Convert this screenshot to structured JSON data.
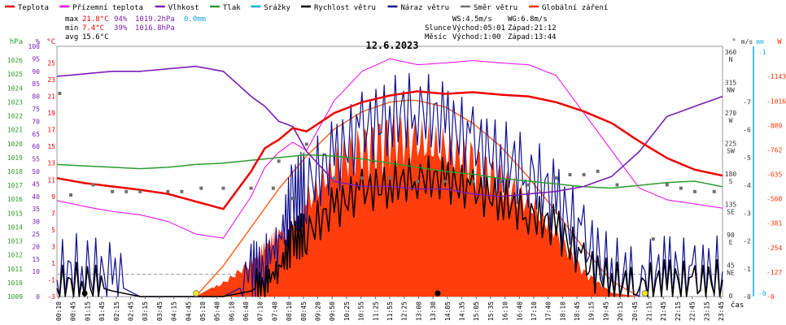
{
  "colors": {
    "temperature": "#ee0000",
    "feels_like": "#ee00ee",
    "humidity": "#7a1fb4",
    "pressure": "#2e9a2e",
    "precipitation": "#11aadd",
    "wind_speed": "#000000",
    "wind_gust": "#101090",
    "wind_direction": "#707070",
    "solar": "#ff3300",
    "solar_curve": "#ff6622",
    "ruler": "#cccccc",
    "axis_hpa": "#2e9a2e",
    "axis_pct": "#7a1fb4",
    "axis_c": "#ee0000",
    "axis_dir": "#333333",
    "axis_ms": "#333333",
    "axis_mm": "#11aadd",
    "axis_w": "#ff3300"
  },
  "legend": [
    {
      "key": "temperature",
      "label": "Teplota"
    },
    {
      "key": "feels_like",
      "label": "Přízemní teplota"
    },
    {
      "key": "humidity",
      "label": "Vlhkost"
    },
    {
      "key": "pressure",
      "label": "Tlak"
    },
    {
      "key": "precipitation",
      "label": "Srážky"
    },
    {
      "key": "wind_speed",
      "label": "Rychlost větru"
    },
    {
      "key": "wind_gust",
      "label": "Náraz větru"
    },
    {
      "key": "wind_direction",
      "label": "Směr větru"
    },
    {
      "key": "solar",
      "label": "Globální záření"
    }
  ],
  "stats": {
    "max": {
      "label": "max",
      "temp": "21.8°C",
      "hum": "94%",
      "press": "1019.2hPa",
      "rain": "0.0mm"
    },
    "min": {
      "label": "min",
      "temp": " 7.4°C",
      "hum": "39%",
      "press": "1016.8hPa"
    },
    "avg": {
      "label": "avg",
      "temp": "15.6°C"
    }
  },
  "wind_info": {
    "ws": "WS:4.5m/s",
    "wg": "WG:6.8m/s"
  },
  "sun": {
    "label": "Slunce",
    "rise": "Východ:05:01",
    "set": "Západ:21:12"
  },
  "moon": {
    "label": "Měsíc",
    "rise": "Východ:1:00",
    "set": "Západ:13:44"
  },
  "chart_data": {
    "type": "line",
    "title": "12.6.2023",
    "xlabel": "čas",
    "x_ticks": [
      "00:10",
      "00:45",
      "01:15",
      "01:45",
      "02:15",
      "02:45",
      "03:15",
      "03:45",
      "04:15",
      "04:45",
      "05:10",
      "05:40",
      "06:10",
      "06:40",
      "07:10",
      "07:40",
      "08:10",
      "08:45",
      "09:20",
      "09:50",
      "10:25",
      "10:55",
      "11:25",
      "11:55",
      "12:25",
      "13:00",
      "13:30",
      "14:05",
      "14:35",
      "15:05",
      "15:35",
      "16:10",
      "16:40",
      "17:10",
      "17:40",
      "18:10",
      "18:45",
      "19:15",
      "19:45",
      "20:15",
      "20:45",
      "21:15",
      "21:45",
      "22:15",
      "22:45",
      "23:15",
      "23:45"
    ],
    "axes": {
      "hpa": {
        "unit": "hPa",
        "range": [
          1009,
          1027
        ],
        "ticks": [
          1009,
          1010,
          1011,
          1012,
          1013,
          1014,
          1015,
          1016,
          1017,
          1018,
          1019,
          1020,
          1021,
          1022,
          1023,
          1024,
          1025,
          1026
        ]
      },
      "pct": {
        "unit": "%",
        "range": [
          0,
          100
        ],
        "ticks": [
          0,
          10,
          15,
          20,
          25,
          30,
          35,
          40,
          45,
          50,
          55,
          60,
          65,
          70,
          75,
          80,
          85,
          90,
          95,
          100
        ]
      },
      "c": {
        "unit": "°C",
        "range": [
          -3,
          27
        ],
        "ticks": [
          -3,
          -1,
          1,
          3,
          5,
          7,
          9,
          11,
          13,
          15,
          17,
          19,
          21,
          23,
          25
        ]
      },
      "dir": {
        "unit": "°",
        "ticks": [
          "0",
          "45",
          "90",
          "135",
          "180",
          "225",
          "270",
          "315",
          "360"
        ],
        "labels": [
          "",
          "NE",
          "E",
          "SE",
          "S",
          "SW",
          "W",
          "NW",
          "N"
        ]
      },
      "ms": {
        "unit": "m/s",
        "range": [
          0,
          9
        ],
        "ticks": [
          0,
          1,
          2,
          3,
          4,
          5,
          6,
          7
        ]
      },
      "mm": {
        "unit": "mm",
        "range": [
          0,
          1
        ],
        "ticks": [
          0,
          1
        ]
      },
      "w": {
        "unit": "W",
        "range": [
          0,
          1300
        ],
        "ticks": [
          0,
          127,
          254,
          381,
          508,
          635,
          762,
          889,
          1016,
          1143
        ]
      }
    },
    "hours": [
      0,
      1,
      2,
      3,
      4,
      5,
      6,
      7,
      7.5,
      8,
      8.5,
      9,
      10,
      11,
      12,
      13,
      14,
      15,
      16,
      17,
      18,
      19,
      20,
      21,
      22,
      23,
      24
    ],
    "series": [
      {
        "name": "Teplota",
        "key": "temperature",
        "axis": "c",
        "values": [
          11.2,
          10.6,
          10.2,
          9.8,
          9.3,
          8.4,
          7.5,
          12.0,
          14.8,
          15.8,
          17.2,
          16.8,
          19.0,
          20.3,
          21.1,
          21.6,
          21.3,
          21.5,
          21.2,
          21.0,
          20.3,
          19.2,
          17.8,
          15.6,
          13.6,
          12.2,
          11.5
        ]
      },
      {
        "name": "Přízemní teplota",
        "key": "feels_like",
        "axis": "c",
        "values": [
          8.5,
          7.8,
          7.2,
          6.8,
          6.0,
          4.5,
          4.0,
          9.0,
          12.5,
          14.3,
          15.5,
          14.5,
          20.5,
          24.0,
          25.5,
          24.8,
          25.0,
          25.3,
          25.0,
          24.8,
          23.5,
          19.0,
          14.5,
          10.0,
          8.6,
          8.1,
          7.6
        ]
      },
      {
        "name": "Vlhkost",
        "key": "humidity",
        "axis": "pct",
        "values": [
          88,
          89,
          90,
          90,
          91,
          92,
          90,
          80,
          76,
          70,
          68,
          58,
          46,
          44,
          44,
          43,
          43,
          41,
          40,
          41,
          42,
          44,
          48,
          58,
          72,
          76,
          80
        ]
      },
      {
        "name": "Tlak",
        "key": "pressure",
        "axis": "hpa",
        "values": [
          1018.5,
          1018.4,
          1018.3,
          1018.2,
          1018.3,
          1018.5,
          1018.6,
          1018.8,
          1018.9,
          1019.0,
          1019.1,
          1019.2,
          1019.1,
          1018.9,
          1018.6,
          1018.3,
          1018.0,
          1017.8,
          1017.5,
          1017.3,
          1017.1,
          1016.9,
          1016.8,
          1017.0,
          1017.2,
          1017.3,
          1016.9
        ]
      },
      {
        "name": "Rychlost větru",
        "key": "wind_speed",
        "axis": "ms",
        "values": [
          0.3,
          0.5,
          0.2,
          0.0,
          0.0,
          0.0,
          0.0,
          0.2,
          0.5,
          1.0,
          2.0,
          2.3,
          3.2,
          3.8,
          4.0,
          4.3,
          4.2,
          3.8,
          3.5,
          3.0,
          2.5,
          1.2,
          0.5,
          0.3,
          0.6,
          0.4,
          0.6
        ]
      },
      {
        "name": "Náraz větru",
        "key": "wind_gust",
        "axis": "ms",
        "values": [
          0.6,
          1.0,
          0.5,
          0.0,
          0.0,
          0.0,
          0.0,
          0.5,
          1.2,
          2.0,
          3.5,
          4.0,
          5.0,
          6.0,
          6.5,
          6.8,
          6.3,
          5.5,
          5.0,
          4.5,
          3.5,
          2.0,
          0.8,
          0.5,
          0.9,
          0.6,
          0.9
        ]
      },
      {
        "name": "Globální záření",
        "key": "solar",
        "axis": "w",
        "values": [
          0,
          0,
          0,
          0,
          0,
          0,
          80,
          200,
          300,
          380,
          420,
          560,
          780,
          900,
          970,
          930,
          880,
          820,
          700,
          560,
          380,
          150,
          20,
          0,
          0,
          0,
          0
        ]
      }
    ],
    "solar_max_curve": {
      "axis": "w",
      "hours": [
        5,
        6,
        7,
        8,
        9,
        10,
        11,
        12,
        12.7,
        13,
        14,
        15,
        16,
        17,
        18,
        19,
        20,
        21
      ],
      "values": [
        0,
        160,
        360,
        560,
        730,
        870,
        960,
        1010,
        1020,
        1018,
        985,
        900,
        780,
        620,
        440,
        250,
        80,
        0
      ]
    },
    "wind_direction": {
      "axis": "dir",
      "hours": [
        0.1,
        0.5,
        1.3,
        2.0,
        2.5,
        3.0,
        4.0,
        4.5,
        5.2,
        6.0,
        7.0,
        7.8,
        8.0,
        8.5,
        9.0,
        10.0,
        11.0,
        12.0,
        13.0,
        14.0,
        15.0,
        16.0,
        17.0,
        18.0,
        18.5,
        19.0,
        19.5,
        20.2,
        21.5,
        22.0,
        22.5,
        23.0,
        23.7
      ],
      "values": [
        300,
        150,
        165,
        155,
        155,
        155,
        155,
        155,
        160,
        160,
        160,
        160,
        200,
        145,
        225,
        175,
        175,
        175,
        170,
        170,
        170,
        170,
        165,
        175,
        180,
        180,
        185,
        165,
        85,
        165,
        160,
        155,
        155
      ]
    },
    "sun_markers_hours": [
      5.02,
      21.2
    ],
    "moon_markers_hours": [
      1.0,
      13.73
    ]
  }
}
